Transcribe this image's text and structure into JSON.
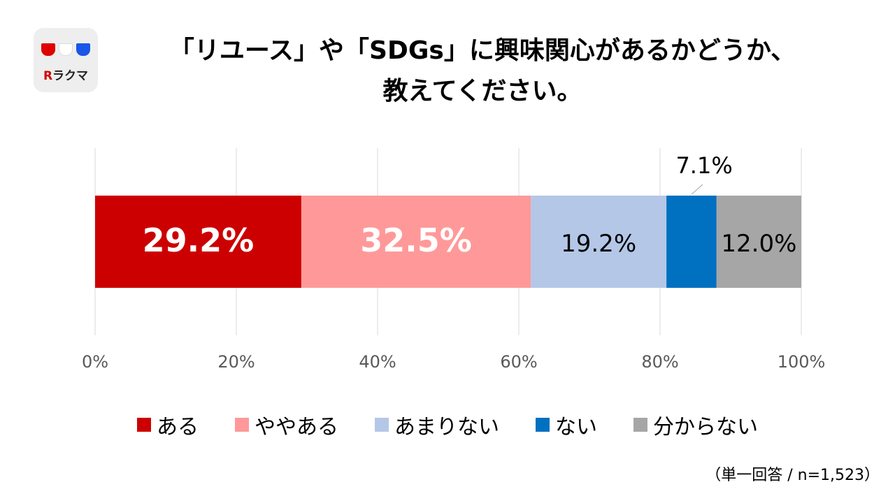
{
  "logo": {
    "brand_mark": "R",
    "brand_text": "ラクマ"
  },
  "title": {
    "line1": "「リユース」や「SDGs」に興味関心があるかどうか、",
    "line2": "教えてください。"
  },
  "chart_data": {
    "type": "bar",
    "orientation": "horizontal",
    "stacked": true,
    "categories": [
      ""
    ],
    "series": [
      {
        "name": "ある",
        "values": [
          29.2
        ],
        "label": "29.2%",
        "color": "#cc0000",
        "label_color": "#ffffff",
        "label_bold": true
      },
      {
        "name": "ややある",
        "values": [
          32.5
        ],
        "label": "32.5%",
        "color": "#ff9999",
        "label_color": "#ffffff",
        "label_bold": true
      },
      {
        "name": "あまりない",
        "values": [
          19.2
        ],
        "label": "19.2%",
        "color": "#b4c7e7",
        "label_color": "#000000",
        "label_bold": false
      },
      {
        "name": "ない",
        "values": [
          7.1
        ],
        "label": "7.1%",
        "color": "#0070c0",
        "label_color": "#000000",
        "label_bold": false,
        "label_outside": true
      },
      {
        "name": "分からない",
        "values": [
          12.0
        ],
        "label": "12.0%",
        "color": "#a6a6a6",
        "label_color": "#000000",
        "label_bold": false
      }
    ],
    "xlim": [
      0,
      100
    ],
    "xticks": [
      "0%",
      "20%",
      "40%",
      "60%",
      "80%",
      "100%"
    ],
    "grid": true,
    "legend_position": "bottom"
  },
  "footnote": "（単一回答 / n=1,523）"
}
